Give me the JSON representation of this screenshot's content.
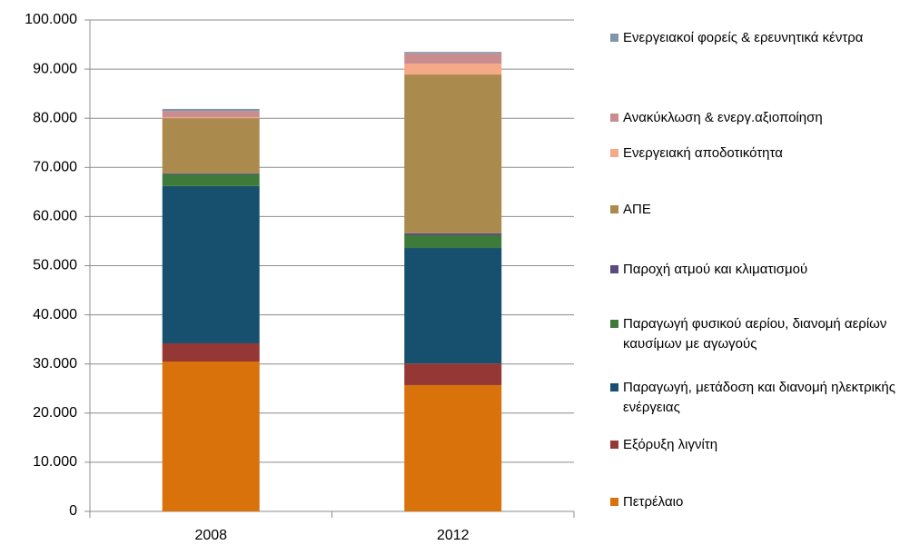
{
  "chart_data": {
    "type": "stacked_bar",
    "categories": [
      "2008",
      "2012"
    ],
    "series": [
      {
        "name": "Πετρέλαιο",
        "color": "#d9720a",
        "values": [
          30500,
          25700
        ]
      },
      {
        "name": "Εξόρυξη λιγνίτη",
        "color": "#953735",
        "values": [
          3700,
          4400
        ]
      },
      {
        "name": "Παραγωγή, μετάδοση και διανομή ηλεκτρικής ενέργειας",
        "color": "#17506f",
        "values": [
          32000,
          23500
        ]
      },
      {
        "name": "Παραγωγή φυσικού αερίου, διανομή αερίων καυσίμων με αγωγούς",
        "color": "#3e7a3a",
        "values": [
          2400,
          2600
        ]
      },
      {
        "name": "Παροχή ατμού και κλιματισμού",
        "color": "#5b4a80",
        "values": [
          200,
          400
        ]
      },
      {
        "name": "ΑΠΕ",
        "color": "#ab8a4e",
        "values": [
          11200,
          32300
        ]
      },
      {
        "name": "Ενεργειακή αποδοτικότητα",
        "color": "#f5a987",
        "values": [
          200,
          2200
        ]
      },
      {
        "name": "Ανακύκλωση & ενεργ.αξιοποίηση",
        "color": "#c98d8f",
        "values": [
          1300,
          2100
        ]
      },
      {
        "name": "Ενεργειακοί φορείς & ερευνητικά κέντρα",
        "color": "#8194a8",
        "values": [
          400,
          300
        ]
      }
    ],
    "ylim": [
      0,
      100000
    ],
    "yticks": [
      0,
      {
        "value": 10000,
        "label": "10.000"
      },
      {
        "value": 20000,
        "label": "20.000"
      },
      {
        "value": 30000,
        "label": "30.000"
      },
      {
        "value": 40000,
        "label": "40.000"
      },
      {
        "value": 50000,
        "label": "50.000"
      },
      {
        "value": 60000,
        "label": "60.000"
      },
      {
        "value": 70000,
        "label": "70.000"
      },
      {
        "value": 80000,
        "label": "80.000"
      },
      {
        "value": 90000,
        "label": "90.000"
      },
      {
        "value": 100000,
        "label": "100.000"
      }
    ],
    "grid": true,
    "legend": "right"
  }
}
